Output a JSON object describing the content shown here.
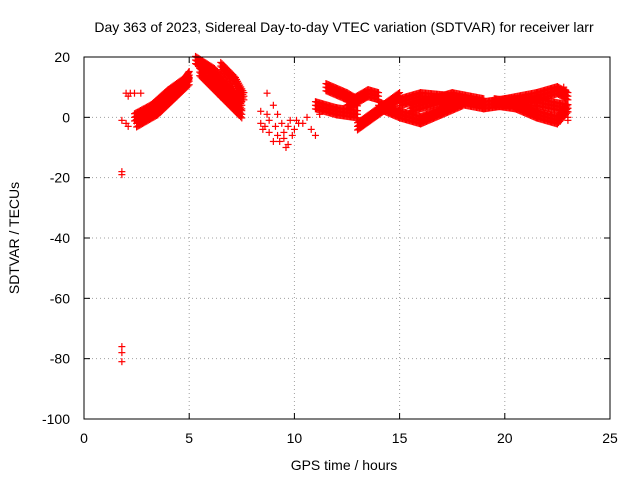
{
  "chart_data": {
    "type": "scatter",
    "title": "Day 363 of 2023, Sidereal Day-to-day VTEC variation (SDTVAR) for receiver larr",
    "xlabel": "GPS time / hours",
    "ylabel": "SDTVAR / TECUs",
    "xlim": [
      0,
      25
    ],
    "ylim": [
      -100,
      20
    ],
    "xticks": [
      "0",
      "5",
      "10",
      "15",
      "20",
      "25"
    ],
    "yticks": [
      "-100",
      "-80",
      "-60",
      "-40",
      "-20",
      "0",
      "20"
    ],
    "grid": true,
    "marker_color": "#ff0000",
    "marker": "plus",
    "series": [
      {
        "color": "#ff0000",
        "tracks": [
          [
            [
              2.4,
              0
            ],
            [
              3.2,
              3
            ],
            [
              4.0,
              8
            ],
            [
              4.8,
              12
            ],
            [
              5.0,
              14
            ]
          ],
          [
            [
              2.5,
              -2
            ],
            [
              3.5,
              2
            ],
            [
              4.4,
              8
            ],
            [
              5.0,
              12
            ]
          ],
          [
            [
              5.3,
              19
            ],
            [
              6.2,
              15
            ],
            [
              7.0,
              9
            ],
            [
              7.5,
              4
            ]
          ],
          [
            [
              5.5,
              15
            ],
            [
              6.5,
              8
            ],
            [
              7.5,
              1
            ]
          ],
          [
            [
              6.5,
              17
            ],
            [
              7.2,
              12
            ],
            [
              7.6,
              7
            ]
          ],
          [
            [
              6.0,
              12
            ],
            [
              6.8,
              9
            ],
            [
              7.4,
              6
            ]
          ],
          [
            [
              11.5,
              10
            ],
            [
              12.5,
              7
            ],
            [
              13.0,
              5
            ]
          ],
          [
            [
              11.0,
              4
            ],
            [
              12.0,
              2
            ],
            [
              13.0,
              1
            ]
          ],
          [
            [
              13.0,
              -3
            ],
            [
              14.0,
              2
            ],
            [
              15.0,
              7
            ]
          ],
          [
            [
              14.0,
              4
            ],
            [
              15.0,
              1
            ],
            [
              16.0,
              -1
            ],
            [
              17.0,
              2
            ],
            [
              18.0,
              5
            ]
          ],
          [
            [
              15.0,
              5
            ],
            [
              16.0,
              7
            ],
            [
              17.5,
              6
            ],
            [
              19.0,
              4
            ],
            [
              20.0,
              5
            ],
            [
              21.5,
              5
            ],
            [
              23.0,
              3
            ]
          ],
          [
            [
              15.5,
              3
            ],
            [
              16.5,
              5
            ],
            [
              17.5,
              7
            ],
            [
              19.0,
              5
            ]
          ],
          [
            [
              19.5,
              5
            ],
            [
              20.5,
              4
            ],
            [
              21.5,
              1
            ],
            [
              22.5,
              -1
            ],
            [
              23.0,
              3
            ]
          ],
          [
            [
              20.0,
              5
            ],
            [
              21.5,
              7
            ],
            [
              22.5,
              9
            ],
            [
              23.0,
              7
            ]
          ],
          [
            [
              12.5,
              4
            ],
            [
              13.5,
              8
            ],
            [
              14.0,
              7
            ]
          ]
        ],
        "points": [
          [
            1.8,
            -1
          ],
          [
            1.8,
            -18
          ],
          [
            1.8,
            -19
          ],
          [
            1.8,
            -76
          ],
          [
            1.8,
            -78
          ],
          [
            1.8,
            -81
          ],
          [
            2.0,
            8
          ],
          [
            2.1,
            7
          ],
          [
            2.2,
            8
          ],
          [
            2.4,
            8
          ],
          [
            2.7,
            8
          ],
          [
            2.0,
            -2
          ],
          [
            2.1,
            -3
          ],
          [
            8.4,
            2
          ],
          [
            8.4,
            -2
          ],
          [
            8.5,
            -4
          ],
          [
            8.7,
            1
          ],
          [
            8.7,
            8
          ],
          [
            8.8,
            -1
          ],
          [
            8.8,
            -5
          ],
          [
            9.0,
            4
          ],
          [
            9.1,
            -3
          ],
          [
            9.2,
            -6
          ],
          [
            9.2,
            1
          ],
          [
            9.4,
            -2
          ],
          [
            9.5,
            -7
          ],
          [
            9.5,
            -5
          ],
          [
            9.7,
            -9
          ],
          [
            9.7,
            -3
          ],
          [
            9.8,
            -1
          ],
          [
            9.9,
            -6
          ],
          [
            10.0,
            -4
          ],
          [
            10.2,
            -2
          ],
          [
            10.4,
            -2
          ],
          [
            10.6,
            0
          ],
          [
            10.8,
            -4
          ],
          [
            11.0,
            -6
          ],
          [
            9.0,
            -8
          ],
          [
            9.3,
            -8
          ],
          [
            9.6,
            -10
          ],
          [
            8.6,
            -3
          ],
          [
            10.1,
            -1
          ],
          [
            11.2,
            1
          ],
          [
            22.8,
            10
          ],
          [
            22.9,
            9
          ],
          [
            23.0,
            0
          ],
          [
            23.0,
            -1
          ]
        ]
      }
    ]
  }
}
